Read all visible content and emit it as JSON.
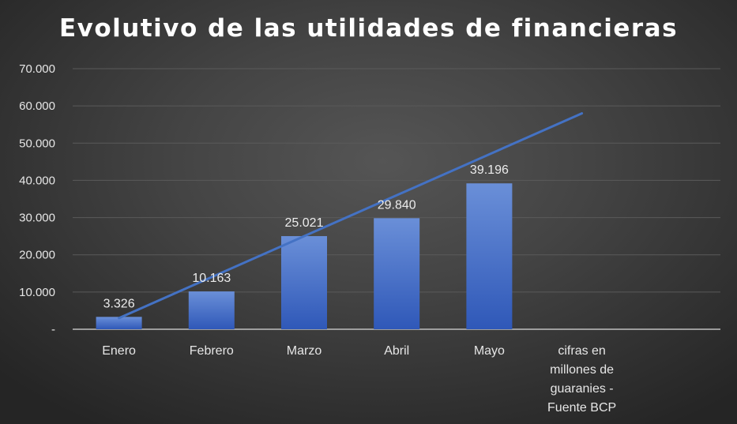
{
  "chart_data": {
    "type": "bar",
    "title": "Evolutivo de las utilidades de financieras",
    "categories": [
      "Enero",
      "Febrero",
      "Marzo",
      "Abril",
      "Mayo",
      "cifras en\nmillones de\nguaranies -\nFuente BCP"
    ],
    "series": [
      {
        "values": [
          3326,
          10163,
          25021,
          29840,
          39196,
          null
        ]
      }
    ],
    "data_labels": [
      "3.326",
      "10.163",
      "25.021",
      "29.840",
      "39.196",
      ""
    ],
    "y_tick_labels": [
      "-",
      "10.000",
      "20.000",
      "30.000",
      "40.000",
      "50.000",
      "60.000",
      "70.000"
    ],
    "y_ticks": [
      0,
      10000,
      20000,
      30000,
      40000,
      50000,
      60000,
      70000
    ],
    "ylim": [
      0,
      70000
    ],
    "trendline": {
      "type": "linear",
      "start": 3000,
      "end": 58000
    },
    "grid": true,
    "legend": "none",
    "colors": {
      "bar_top": "#6a8fd8",
      "bar_bottom": "#2f58b8",
      "trendline": "#4472c4",
      "gridline": "#5a5a5a"
    }
  }
}
